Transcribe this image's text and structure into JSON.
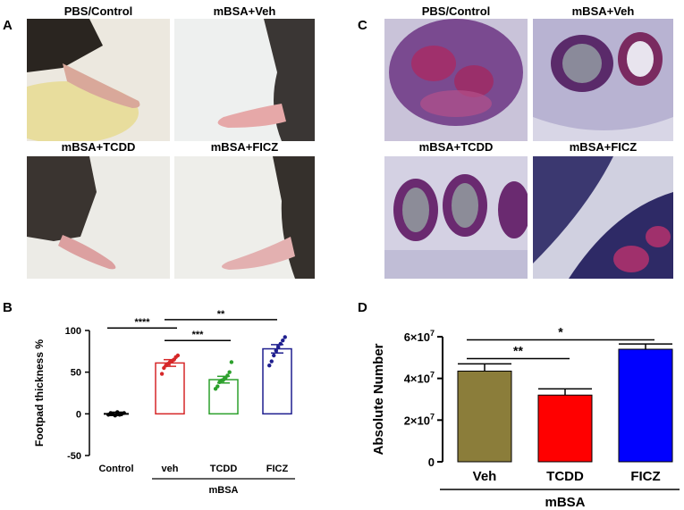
{
  "panel_a": {
    "letter": "A",
    "titles": [
      "PBS/Control",
      "mBSA+Veh",
      "mBSA+TCDD",
      "mBSA+FICZ"
    ]
  },
  "panel_c": {
    "letter": "C",
    "titles": [
      "PBS/Control",
      "mBSA+Veh",
      "mBSA+TCDD",
      "mBSA+FICZ"
    ]
  },
  "panel_b": {
    "letter": "B"
  },
  "panel_d": {
    "letter": "D"
  },
  "colors": {
    "control": "#000000",
    "veh": "#d62728",
    "tcdd": "#2ca02c",
    "ficz": "#1f1f8f",
    "d_veh": "#8b7d3a",
    "d_tcdd": "#ff0000",
    "d_ficz": "#0000ff"
  },
  "chart_data": [
    {
      "type": "bar",
      "panel": "B",
      "ylabel": "Footpad thickness %",
      "ylim": [
        -50,
        100
      ],
      "yticks": [
        "100",
        "50",
        "0",
        "-50"
      ],
      "categories": [
        "Control",
        "veh",
        "TCDD",
        "FICZ"
      ],
      "group_label": "mBSA",
      "values": [
        0,
        61,
        41,
        78
      ],
      "errors": [
        2,
        4,
        4,
        5
      ],
      "points": [
        [
          -1,
          1,
          0,
          -2,
          2,
          -1,
          0,
          1
        ],
        [
          48,
          55,
          58,
          60,
          62,
          63,
          65,
          68,
          70
        ],
        [
          30,
          33,
          38,
          40,
          41,
          43,
          46,
          50,
          62
        ],
        [
          58,
          63,
          70,
          76,
          80,
          84,
          88,
          92
        ]
      ],
      "significance": [
        {
          "from": 0,
          "to": 1,
          "label": "****"
        },
        {
          "from": 1,
          "to": 2,
          "label": "***"
        },
        {
          "from": 1,
          "to": 3,
          "label": "**"
        }
      ],
      "grid": false
    },
    {
      "type": "bar",
      "panel": "D",
      "ylabel": "Absolute Number",
      "ylim": [
        0,
        60000000
      ],
      "yticks": [
        {
          "base": "0",
          "exp": ""
        },
        {
          "base": "2×10",
          "exp": "7"
        },
        {
          "base": "4×10",
          "exp": "7"
        },
        {
          "base": "6×10",
          "exp": "7"
        }
      ],
      "categories": [
        "Veh",
        "TCDD",
        "FICZ"
      ],
      "group_label": "mBSA",
      "values": [
        43500000,
        32000000,
        54000000
      ],
      "errors": [
        3500000,
        3000000,
        2500000
      ],
      "significance": [
        {
          "from": 0,
          "to": 1,
          "label": "**"
        },
        {
          "from": 0,
          "to": 2,
          "label": "*"
        }
      ],
      "grid": false
    }
  ]
}
